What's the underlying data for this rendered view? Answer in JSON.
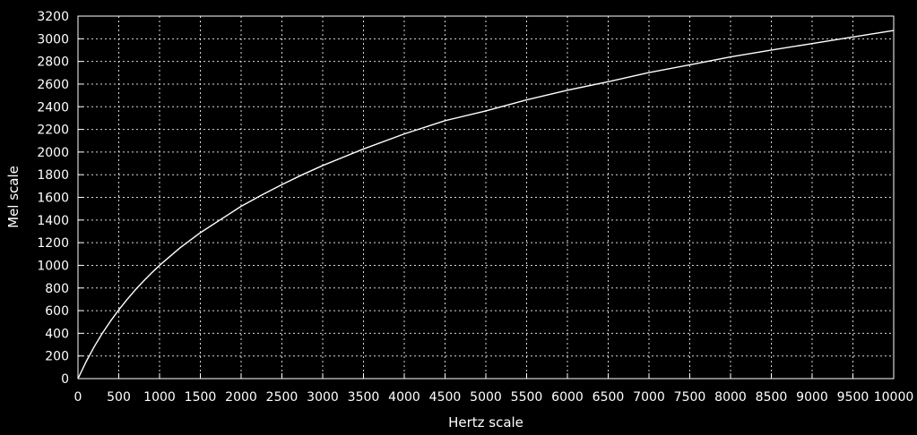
{
  "chart_data": {
    "type": "line",
    "title": "",
    "xlabel": "Hertz scale",
    "ylabel": "Mel scale",
    "xlim": [
      0,
      10000
    ],
    "ylim": [
      0,
      3200
    ],
    "x_ticks": [
      0,
      500,
      1000,
      1500,
      2000,
      2500,
      3000,
      3500,
      4000,
      4500,
      5000,
      5500,
      6000,
      6500,
      7000,
      7500,
      8000,
      8500,
      9000,
      9500,
      10000
    ],
    "y_ticks": [
      0,
      200,
      400,
      600,
      800,
      1000,
      1200,
      1400,
      1600,
      1800,
      2000,
      2200,
      2400,
      2600,
      2800,
      3000,
      3200
    ],
    "grid": true,
    "legend": "none",
    "colors": {
      "background": "#000000",
      "foreground": "#ffffff",
      "grid": "#ffffff",
      "line": "#ffffff"
    },
    "series": [
      {
        "x": [
          0,
          100,
          200,
          300,
          400,
          500,
          600,
          700,
          800,
          900,
          1000,
          1250,
          1500,
          1750,
          2000,
          2250,
          2500,
          2750,
          3000,
          3500,
          4000,
          4500,
          5000,
          5500,
          6000,
          6500,
          7000,
          7500,
          8000,
          8500,
          9000,
          9500,
          10000
        ],
        "y": [
          0,
          150,
          283,
          402,
          509,
          607,
          697,
          781,
          858,
          931,
          1000,
          1154,
          1288,
          1405,
          1521,
          1620,
          1713,
          1800,
          1881,
          2027,
          2160,
          2277,
          2363,
          2461,
          2546,
          2621,
          2702,
          2770,
          2840,
          2900,
          2958,
          3016,
          3073
        ]
      }
    ]
  }
}
